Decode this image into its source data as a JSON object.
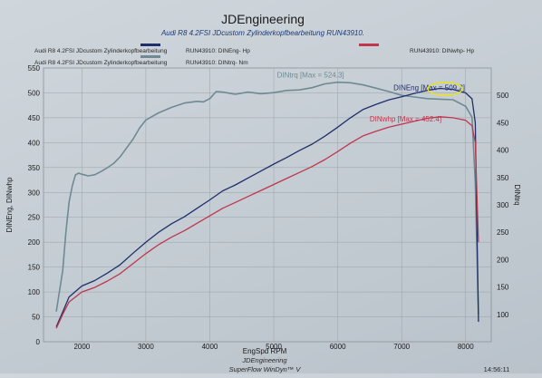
{
  "header": {
    "title": "JDEngineering",
    "subtitle": "Audi R8 4.2FSI  JDcustom  Zylinderkopfbearbeitung  RUN43910."
  },
  "legend": {
    "items": [
      {
        "label_left": "Audi R8 4.2FSI  JDcustom  Zylinderkopfbearbeitung",
        "label_right": "RUN43910: DINEng- Hp",
        "color": "#1f2f6b"
      },
      {
        "label_left": "Audi R8 4.2FSI  JDcustom  Zylinderkopfbearbeitung",
        "label_right": "RUN43910: DINtrq- Nm",
        "color": "#6f8a93"
      },
      {
        "label_left": "",
        "label_right": "RUN43910: DINwhp- Hp",
        "color": "#c0364d"
      }
    ]
  },
  "footer": {
    "company": "JDEngineering",
    "software": "SuperFlow WinDyn™ V",
    "time": "14:56:11"
  },
  "chart_data": {
    "type": "line",
    "title": "JDEngineering",
    "xlabel": "EngSpd RPM",
    "ylabel_left": "DINEng, DINwhp",
    "ylabel_right": "DINtrq",
    "xlim": [
      1400,
      8400
    ],
    "ylim_left": [
      0,
      550
    ],
    "ylim_right": [
      50,
      550
    ],
    "x_ticks": [
      2000,
      3000,
      4000,
      5000,
      6000,
      7000,
      8000
    ],
    "y_ticks_left": [
      0,
      50,
      100,
      150,
      200,
      250,
      300,
      350,
      400,
      450,
      500,
      550
    ],
    "y_ticks_right": [
      100,
      150,
      200,
      250,
      300,
      350,
      400,
      450,
      500
    ],
    "grid": true,
    "annotations": [
      {
        "text": "DINtrq [Max = 524.3]",
        "series": "DINtrq"
      },
      {
        "text": "DINEng [Max = 509.2]",
        "series": "DINEng"
      },
      {
        "text": "DINwhp [Max = 452.4]",
        "series": "DINwhp"
      }
    ],
    "series": [
      {
        "name": "DINtrq",
        "axis": "right",
        "color": "#6f8a93",
        "x": [
          1600,
          1700,
          1750,
          1800,
          1850,
          1900,
          1950,
          2000,
          2100,
          2200,
          2300,
          2400,
          2500,
          2600,
          2700,
          2800,
          2900,
          3000,
          3200,
          3400,
          3600,
          3800,
          3900,
          4000,
          4100,
          4200,
          4400,
          4600,
          4800,
          5000,
          5200,
          5400,
          5600,
          5800,
          6000,
          6200,
          6400,
          6600,
          6800,
          7000,
          7200,
          7400,
          7600,
          7800,
          8000,
          8100,
          8150,
          8200
        ],
        "y": [
          105,
          180,
          250,
          305,
          335,
          355,
          358,
          356,
          353,
          355,
          361,
          368,
          376,
          388,
          404,
          420,
          440,
          455,
          468,
          478,
          486,
          489,
          488,
          494,
          507,
          506,
          502,
          506,
          503,
          505,
          509,
          510,
          514,
          521,
          524,
          523,
          519,
          513,
          507,
          500,
          497,
          494,
          493,
          492,
          480,
          460,
          340,
          100
        ]
      },
      {
        "name": "DINEng",
        "axis": "left",
        "color": "#1f2f6b",
        "x": [
          1600,
          1700,
          1800,
          2000,
          2200,
          2400,
          2600,
          2800,
          3000,
          3200,
          3400,
          3600,
          3800,
          4000,
          4200,
          4400,
          4600,
          4800,
          5000,
          5200,
          5400,
          5600,
          5800,
          6000,
          6200,
          6400,
          6600,
          6800,
          7000,
          7200,
          7400,
          7600,
          7800,
          8000,
          8100,
          8150,
          8200
        ],
        "y": [
          30,
          60,
          90,
          112,
          123,
          138,
          155,
          178,
          200,
          220,
          237,
          251,
          268,
          285,
          303,
          315,
          329,
          343,
          357,
          370,
          384,
          397,
          413,
          431,
          450,
          467,
          477,
          486,
          492,
          499,
          505,
          509,
          507,
          500,
          488,
          440,
          40
        ]
      },
      {
        "name": "DINwhp",
        "axis": "left",
        "color": "#c0364d",
        "x": [
          1600,
          1700,
          1800,
          2000,
          2200,
          2400,
          2600,
          2800,
          3000,
          3200,
          3400,
          3600,
          3800,
          4000,
          4200,
          4400,
          4600,
          4800,
          5000,
          5200,
          5400,
          5600,
          5800,
          6000,
          6200,
          6400,
          6600,
          6800,
          7000,
          7200,
          7400,
          7600,
          7800,
          8000,
          8100,
          8150,
          8200
        ],
        "y": [
          27,
          55,
          80,
          100,
          109,
          122,
          137,
          157,
          177,
          195,
          210,
          223,
          238,
          253,
          268,
          280,
          292,
          304,
          316,
          328,
          340,
          352,
          366,
          382,
          399,
          414,
          423,
          431,
          437,
          443,
          449,
          452,
          450,
          445,
          434,
          400,
          200
        ]
      }
    ]
  }
}
